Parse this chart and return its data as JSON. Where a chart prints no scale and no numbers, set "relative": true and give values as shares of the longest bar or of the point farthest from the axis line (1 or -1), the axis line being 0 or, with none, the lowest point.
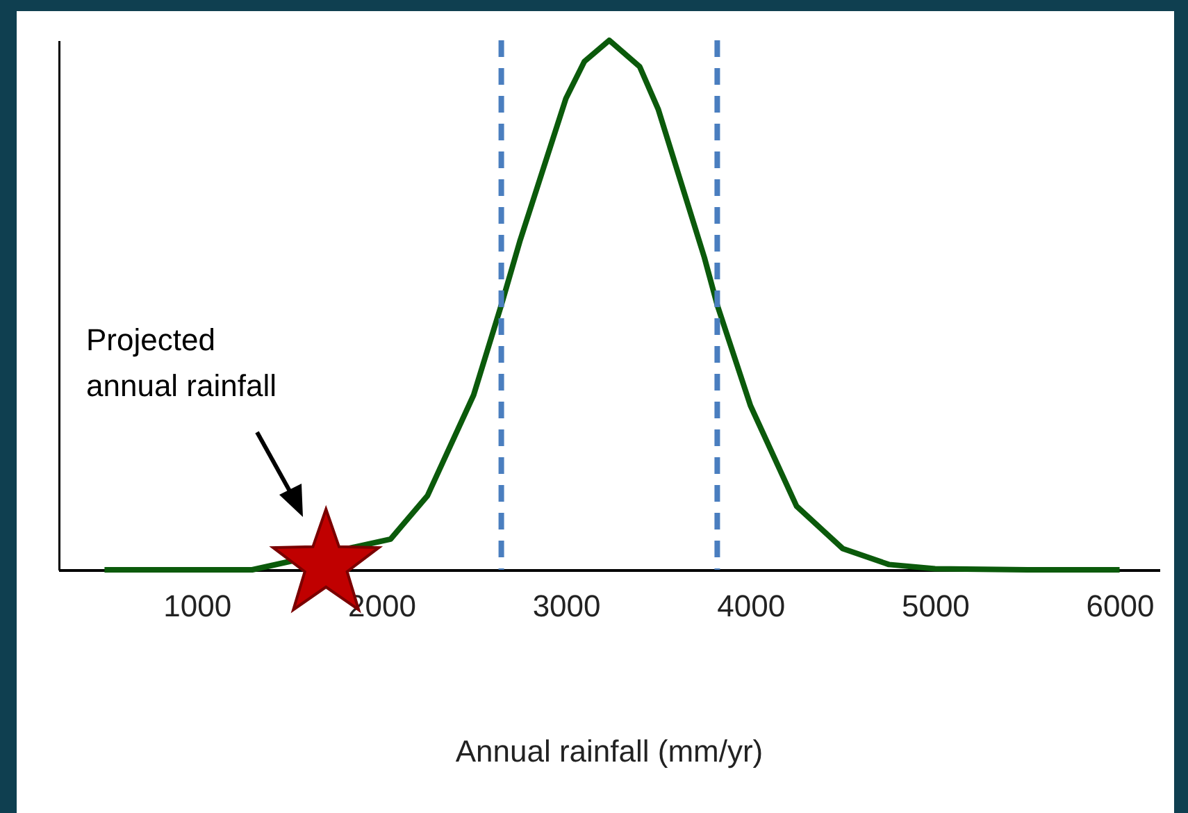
{
  "chart_data": {
    "type": "line",
    "xlabel": "Annual rainfall (mm/yr)",
    "relative": true,
    "xlim": [
      250,
      6220
    ],
    "xticks": [
      1000,
      2000,
      3000,
      4000,
      5000,
      6000
    ],
    "series": [
      {
        "color": "#0b5a0b",
        "line_style": "solid",
        "x": [
          500,
          1000,
          1300,
          1750,
          2050,
          2250,
          2500,
          2650,
          2750,
          3000,
          3100,
          3235,
          3400,
          3500,
          3750,
          3820,
          4000,
          4250,
          4500,
          4750,
          5000,
          5500,
          6000
        ],
        "values": [
          0,
          0,
          0,
          null,
          0.058,
          0.14,
          0.33,
          0.5,
          0.62,
          0.89,
          0.96,
          1,
          0.95,
          0.87,
          0.59,
          0.5,
          0.31,
          0.12,
          0.04,
          0.01,
          0.002,
          0,
          0
        ]
      },
      {
        "type": "scatter",
        "color": "#c00000",
        "marker": "star",
        "x": [
          1700
        ],
        "values": [
          0.02
        ]
      }
    ],
    "ref_lines": [
      {
        "axis": "x",
        "value": 2650,
        "color": "#4a7ebf",
        "line_style": "dashed"
      },
      {
        "axis": "x",
        "value": 3820,
        "color": "#4a7ebf",
        "line_style": "dashed"
      }
    ],
    "annotations": [
      "Projected\nannual rainfall"
    ]
  }
}
